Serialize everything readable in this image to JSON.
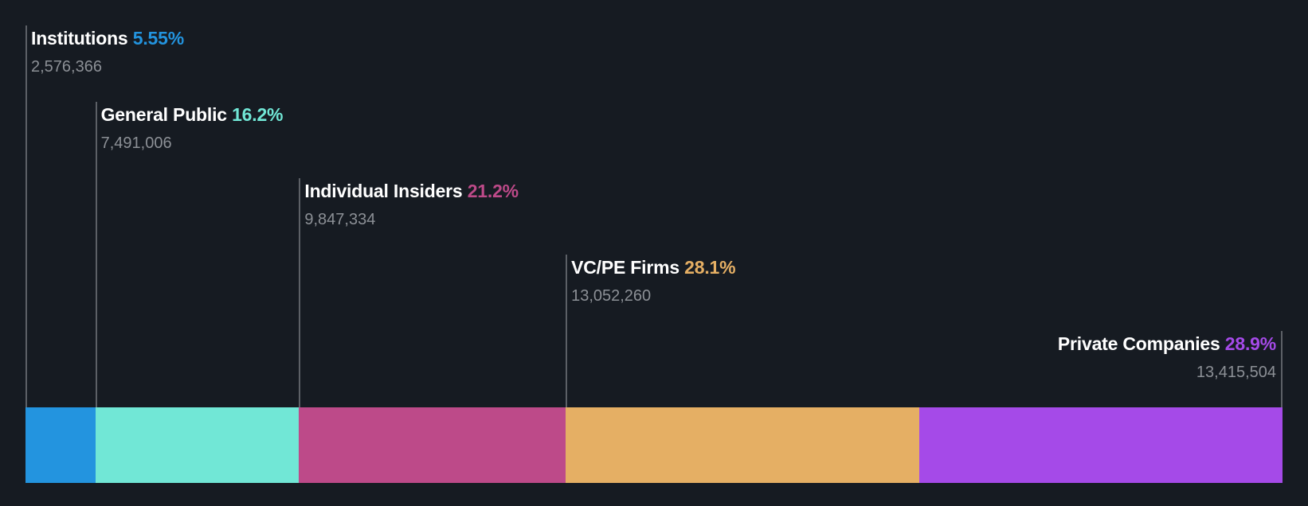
{
  "chart_data": {
    "type": "bar",
    "subtype": "stacked-horizontal-100",
    "title": "",
    "xlabel": "",
    "ylabel": "",
    "categories": [
      "Institutions",
      "General Public",
      "Individual Insiders",
      "VC/PE Firms",
      "Private Companies"
    ],
    "values_percent": [
      5.55,
      16.2,
      21.2,
      28.1,
      28.9
    ],
    "values_shares": [
      2576366,
      7491006,
      9847334,
      13052260,
      13415504
    ],
    "series": [
      {
        "name": "Institutions",
        "percent": 5.55,
        "percent_label": "5.55%",
        "shares": 2576366,
        "shares_label": "2,576,366",
        "color": "#2394df"
      },
      {
        "name": "General Public",
        "percent": 16.2,
        "percent_label": "16.2%",
        "shares": 7491006,
        "shares_label": "7,491,006",
        "color": "#71e7d6"
      },
      {
        "name": "Individual Insiders",
        "percent": 21.2,
        "percent_label": "21.2%",
        "shares": 9847334,
        "shares_label": "9,847,334",
        "color": "#bd4a89"
      },
      {
        "name": "VC/PE Firms",
        "percent": 28.1,
        "percent_label": "28.1%",
        "shares": 13052260,
        "shares_label": "13,052,260",
        "color": "#e5af64"
      },
      {
        "name": "Private Companies",
        "percent": 28.9,
        "percent_label": "28.9%",
        "shares": 13415504,
        "shares_label": "13,415,504",
        "color": "#a54ae8"
      }
    ],
    "legend": "inline-labels-above-bar",
    "grid": false
  },
  "colors": {
    "background": "#161b22",
    "title_text": "#ffffff",
    "value_text": "#8c9096",
    "marker_line": "#5c6066"
  }
}
